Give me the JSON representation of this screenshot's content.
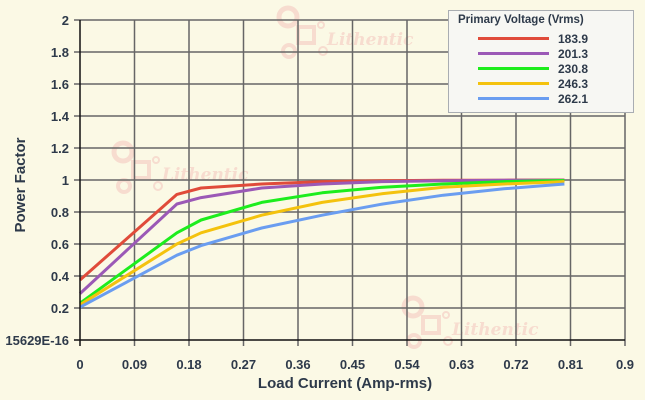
{
  "chart_data": {
    "type": "line",
    "title": "",
    "xlabel": "Load Current (Amp-rms)",
    "ylabel": "Power Factor",
    "xlim": [
      0,
      0.9
    ],
    "ylim": [
      0,
      2
    ],
    "x_ticks": [
      "0",
      "0.09",
      "0.18",
      "0.27",
      "0.36",
      "0.45",
      "0.54",
      "0.63",
      "0.72",
      "0.81",
      "0.9"
    ],
    "y_ticks": [
      "15629E-16",
      "0.2",
      "0.4",
      "0.6",
      "0.8",
      "1",
      "1.2",
      "1.4",
      "1.6",
      "1.8",
      "2"
    ],
    "grid": true,
    "legend_title": "Primary Voltage (Vrms)",
    "legend_position": "top-right",
    "x": [
      0,
      0.16,
      0.2,
      0.3,
      0.4,
      0.5,
      0.6,
      0.7,
      0.8
    ],
    "series": [
      {
        "name": "183.9",
        "color": "#e04b3a",
        "values": [
          0.375,
          0.91,
          0.95,
          0.975,
          0.99,
          0.995,
          0.998,
          0.999,
          1.0
        ]
      },
      {
        "name": "201.3",
        "color": "#9b59b6",
        "values": [
          0.29,
          0.85,
          0.89,
          0.95,
          0.975,
          0.99,
          0.995,
          0.998,
          0.999
        ]
      },
      {
        "name": "230.8",
        "color": "#1ded1d",
        "values": [
          0.23,
          0.67,
          0.75,
          0.86,
          0.92,
          0.955,
          0.975,
          0.99,
          0.997
        ]
      },
      {
        "name": "246.3",
        "color": "#f4c20d",
        "values": [
          0.22,
          0.6,
          0.67,
          0.78,
          0.86,
          0.915,
          0.955,
          0.975,
          0.99
        ]
      },
      {
        "name": "262.1",
        "color": "#6a9df0",
        "values": [
          0.205,
          0.53,
          0.59,
          0.7,
          0.78,
          0.85,
          0.905,
          0.945,
          0.975
        ]
      }
    ],
    "watermark": "Lithentic"
  },
  "legend": {
    "title": "Primary Voltage (Vrms)",
    "items": [
      {
        "label": "183.9",
        "color": "#e04b3a"
      },
      {
        "label": "201.3",
        "color": "#9b59b6"
      },
      {
        "label": "230.8",
        "color": "#1ded1d"
      },
      {
        "label": "246.3",
        "color": "#f4c20d"
      },
      {
        "label": "262.1",
        "color": "#6a9df0"
      }
    ]
  },
  "colors": {
    "background": "#fbf9e5",
    "grid": "#666666",
    "axis": "#111111",
    "text": "#2e3a4a"
  }
}
